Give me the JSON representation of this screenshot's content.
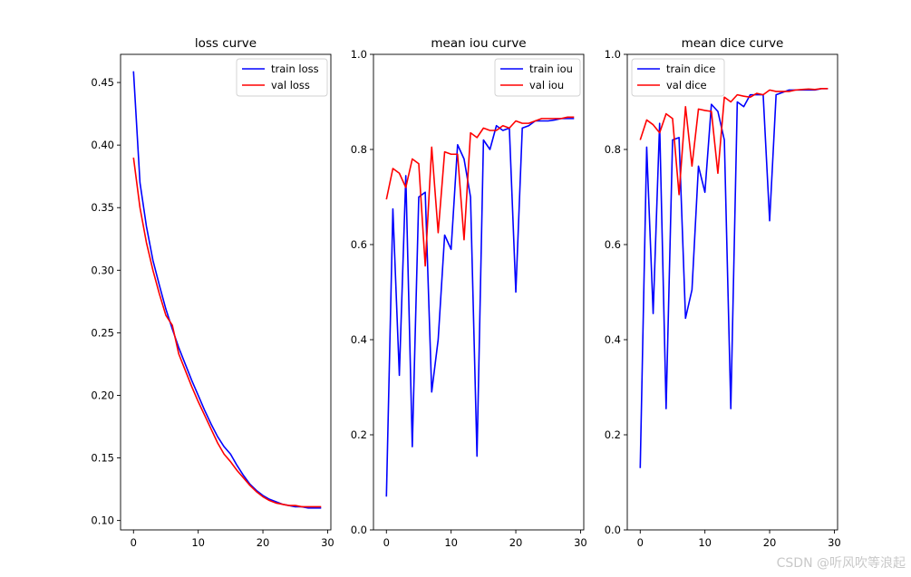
{
  "watermark": "CSDN @听风吹等浪起",
  "chart_data": [
    {
      "type": "line",
      "title": "loss curve",
      "xlim": [
        -2,
        30.5
      ],
      "ylim": [
        0.0925,
        0.4725
      ],
      "xticks": [
        0,
        10,
        20,
        30
      ],
      "yticks": [
        0.1,
        0.15,
        0.2,
        0.25,
        0.3,
        0.35,
        0.4,
        0.45
      ],
      "ytick_labels": [
        "0.10",
        "0.15",
        "0.20",
        "0.25",
        "0.30",
        "0.35",
        "0.40",
        "0.45"
      ],
      "legend": "top-right",
      "x": [
        0,
        1,
        2,
        3,
        4,
        5,
        6,
        7,
        8,
        9,
        10,
        11,
        12,
        13,
        14,
        15,
        16,
        17,
        18,
        19,
        20,
        21,
        22,
        23,
        24,
        25,
        26,
        27,
        28,
        29
      ],
      "series": [
        {
          "name": "train loss",
          "color": "#0000ff",
          "values": [
            0.459,
            0.37,
            0.335,
            0.308,
            0.288,
            0.269,
            0.253,
            0.238,
            0.225,
            0.212,
            0.2,
            0.188,
            0.177,
            0.167,
            0.159,
            0.153,
            0.144,
            0.136,
            0.129,
            0.124,
            0.12,
            0.117,
            0.115,
            0.113,
            0.112,
            0.111,
            0.111,
            0.11,
            0.11,
            0.11
          ]
        },
        {
          "name": "val loss",
          "color": "#ff0000",
          "values": [
            0.39,
            0.35,
            0.322,
            0.3,
            0.281,
            0.264,
            0.256,
            0.233,
            0.22,
            0.207,
            0.195,
            0.184,
            0.173,
            0.162,
            0.153,
            0.147,
            0.14,
            0.134,
            0.128,
            0.123,
            0.119,
            0.116,
            0.114,
            0.113,
            0.112,
            0.112,
            0.111,
            0.111,
            0.111,
            0.111
          ]
        }
      ]
    },
    {
      "type": "line",
      "title": "mean iou curve",
      "xlim": [
        -2,
        30.5
      ],
      "ylim": [
        0.0,
        1.0
      ],
      "xticks": [
        0,
        10,
        20,
        30
      ],
      "yticks": [
        0.0,
        0.2,
        0.4,
        0.6,
        0.8,
        1.0
      ],
      "ytick_labels": [
        "0.0",
        "0.2",
        "0.4",
        "0.6",
        "0.8",
        "1.0"
      ],
      "legend": "top-right",
      "x": [
        0,
        1,
        2,
        3,
        4,
        5,
        6,
        7,
        8,
        9,
        10,
        11,
        12,
        13,
        14,
        15,
        16,
        17,
        18,
        19,
        20,
        21,
        22,
        23,
        24,
        25,
        26,
        27,
        28,
        29
      ],
      "series": [
        {
          "name": "train iou",
          "color": "#0000ff",
          "values": [
            0.07,
            0.675,
            0.325,
            0.745,
            0.175,
            0.7,
            0.71,
            0.29,
            0.4,
            0.62,
            0.59,
            0.81,
            0.78,
            0.7,
            0.155,
            0.82,
            0.8,
            0.85,
            0.84,
            0.845,
            0.5,
            0.845,
            0.85,
            0.86,
            0.86,
            0.86,
            0.862,
            0.865,
            0.865,
            0.865
          ]
        },
        {
          "name": "val iou",
          "color": "#ff0000",
          "values": [
            0.695,
            0.76,
            0.75,
            0.72,
            0.78,
            0.77,
            0.555,
            0.805,
            0.625,
            0.795,
            0.79,
            0.79,
            0.61,
            0.835,
            0.825,
            0.845,
            0.84,
            0.84,
            0.85,
            0.845,
            0.86,
            0.855,
            0.855,
            0.86,
            0.865,
            0.865,
            0.865,
            0.865,
            0.868,
            0.868
          ]
        }
      ]
    },
    {
      "type": "line",
      "title": "mean dice curve",
      "xlim": [
        -2,
        30.5
      ],
      "ylim": [
        0.0,
        1.0
      ],
      "xticks": [
        0,
        10,
        20,
        30
      ],
      "yticks": [
        0.0,
        0.2,
        0.4,
        0.6,
        0.8,
        1.0
      ],
      "ytick_labels": [
        "0.0",
        "0.2",
        "0.4",
        "0.6",
        "0.8",
        "1.0"
      ],
      "legend": "top-left",
      "x": [
        0,
        1,
        2,
        3,
        4,
        5,
        6,
        7,
        8,
        9,
        10,
        11,
        12,
        13,
        14,
        15,
        16,
        17,
        18,
        19,
        20,
        21,
        22,
        23,
        24,
        25,
        26,
        27,
        28,
        29
      ],
      "series": [
        {
          "name": "train dice",
          "color": "#0000ff",
          "values": [
            0.13,
            0.805,
            0.455,
            0.855,
            0.255,
            0.82,
            0.825,
            0.445,
            0.505,
            0.765,
            0.71,
            0.895,
            0.88,
            0.82,
            0.255,
            0.9,
            0.89,
            0.915,
            0.915,
            0.915,
            0.65,
            0.915,
            0.92,
            0.925,
            0.925,
            0.925,
            0.925,
            0.925,
            0.928,
            0.928
          ]
        },
        {
          "name": "val dice",
          "color": "#ff0000",
          "values": [
            0.82,
            0.862,
            0.852,
            0.835,
            0.875,
            0.865,
            0.705,
            0.89,
            0.765,
            0.885,
            0.882,
            0.88,
            0.75,
            0.91,
            0.9,
            0.915,
            0.912,
            0.91,
            0.918,
            0.915,
            0.925,
            0.922,
            0.922,
            0.922,
            0.925,
            0.926,
            0.927,
            0.926,
            0.928,
            0.928
          ]
        }
      ]
    }
  ]
}
